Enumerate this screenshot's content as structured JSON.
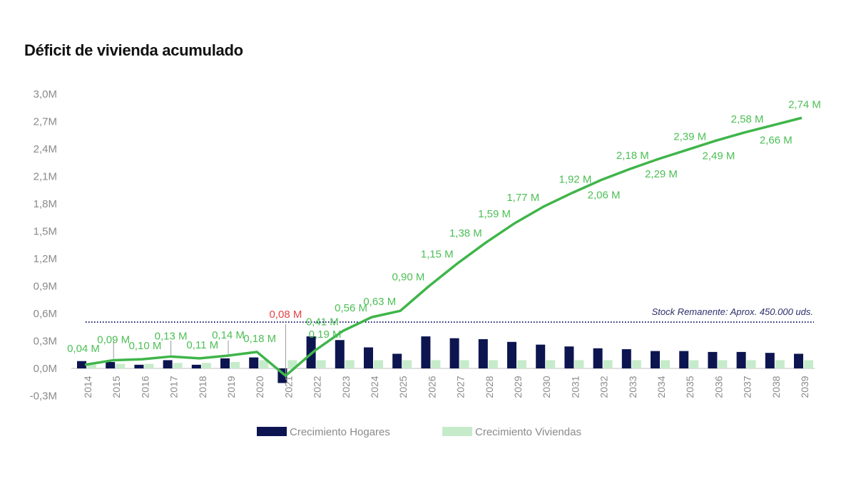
{
  "title": "Déficit de vivienda acumulado",
  "colors": {
    "hogares": "#0d1550",
    "viviendas": "#c6ebcb",
    "line": "#3fb54a",
    "label": "#4cbf55",
    "negative_label": "#e04545",
    "stock_line": "#1a1f6e",
    "axis_text": "#8a8a8a"
  },
  "chart_data": {
    "type": "bar+line",
    "categories": [
      "2014",
      "2015",
      "2016",
      "2017",
      "2018",
      "2019",
      "2020",
      "2021",
      "2022",
      "2023",
      "2024",
      "2025",
      "2026",
      "2027",
      "2028",
      "2029",
      "2030",
      "2031",
      "2032",
      "2033",
      "2034",
      "2035",
      "2036",
      "2037",
      "2038",
      "2039"
    ],
    "x_tick_labels": [
      "2014",
      "2015",
      "2016",
      "2017",
      "2018",
      "2019",
      "2020",
      "2021",
      "2022",
      "2023",
      "2024",
      "2025",
      "2026",
      "2027",
      "2028",
      "2029",
      "2030",
      "2031",
      "2032",
      "2033",
      "2034",
      "2035",
      "2036",
      "2037",
      "2038",
      "2039"
    ],
    "y_tick_labels": [
      "-0,3M",
      "0,0M",
      "0,3M",
      "0,6M",
      "0,9M",
      "1,2M",
      "1,5M",
      "1,8M",
      "2,1M",
      "2,4M",
      "2,7M",
      "3,0M"
    ],
    "ylim": [
      -0.3,
      3.0
    ],
    "series": [
      {
        "name": "Crecimiento Hogares",
        "type": "bar",
        "values": [
          0.08,
          0.07,
          0.04,
          0.09,
          0.04,
          0.11,
          0.12,
          -0.16,
          0.35,
          0.31,
          0.23,
          0.16,
          0.35,
          0.33,
          0.32,
          0.29,
          0.26,
          0.24,
          0.22,
          0.21,
          0.19,
          0.19,
          0.18,
          0.18,
          0.17,
          0.16
        ]
      },
      {
        "name": "Crecimiento Viviendas",
        "type": "bar",
        "values": [
          0.04,
          0.05,
          0.05,
          0.06,
          0.06,
          0.07,
          0.09,
          0.09,
          0.09,
          0.09,
          0.09,
          0.09,
          0.09,
          0.09,
          0.09,
          0.09,
          0.09,
          0.09,
          0.09,
          0.09,
          0.09,
          0.09,
          0.09,
          0.09,
          0.09,
          0.09
        ]
      },
      {
        "type": "line",
        "values": [
          0.04,
          0.09,
          0.1,
          0.13,
          0.11,
          0.14,
          0.18,
          -0.08,
          0.19,
          0.41,
          0.56,
          0.63,
          0.9,
          1.15,
          1.38,
          1.59,
          1.77,
          1.92,
          2.06,
          2.18,
          2.29,
          2.39,
          2.49,
          2.58,
          2.66,
          2.74
        ]
      }
    ],
    "data_labels": [
      {
        "index": 0,
        "text": "0,04 M",
        "pos": "above",
        "color": "green"
      },
      {
        "index": 1,
        "text": "0,09 M",
        "pos": "above-high",
        "color": "green"
      },
      {
        "index": 2,
        "text": "0,10 M",
        "pos": "above",
        "color": "green"
      },
      {
        "index": 3,
        "text": "0,13 M",
        "pos": "above-high",
        "color": "green"
      },
      {
        "index": 4,
        "text": "0,11 M",
        "pos": "above",
        "color": "green"
      },
      {
        "index": 5,
        "text": "0,14 M",
        "pos": "above-high",
        "color": "green"
      },
      {
        "index": 6,
        "text": "0,18 M",
        "pos": "above",
        "color": "green"
      },
      {
        "index": 7,
        "text": "0,08 M",
        "pos": "callout",
        "color": "red"
      },
      {
        "index": 8,
        "text": "0,19 M",
        "pos": "above",
        "color": "green"
      },
      {
        "index": 9,
        "text": "0,41 M",
        "pos": "left",
        "color": "green"
      },
      {
        "index": 10,
        "text": "0,56 M",
        "pos": "left",
        "color": "green"
      },
      {
        "index": 11,
        "text": "0,63 M",
        "pos": "left",
        "color": "green"
      },
      {
        "index": 12,
        "text": "0,90 M",
        "pos": "left",
        "color": "green"
      },
      {
        "index": 13,
        "text": "1,15 M",
        "pos": "left",
        "color": "green"
      },
      {
        "index": 14,
        "text": "1,38 M",
        "pos": "left",
        "color": "green"
      },
      {
        "index": 15,
        "text": "1,59 M",
        "pos": "left",
        "color": "green"
      },
      {
        "index": 16,
        "text": "1,77 M",
        "pos": "left",
        "color": "green"
      },
      {
        "index": 17,
        "text": "1,92 M",
        "pos": "above",
        "color": "green"
      },
      {
        "index": 18,
        "text": "2,06 M",
        "pos": "below",
        "color": "green"
      },
      {
        "index": 19,
        "text": "2,18 M",
        "pos": "above",
        "color": "green"
      },
      {
        "index": 20,
        "text": "2,29 M",
        "pos": "below",
        "color": "green"
      },
      {
        "index": 21,
        "text": "2,39 M",
        "pos": "above",
        "color": "green"
      },
      {
        "index": 22,
        "text": "2,49 M",
        "pos": "below",
        "color": "green"
      },
      {
        "index": 23,
        "text": "2,58 M",
        "pos": "above",
        "color": "green"
      },
      {
        "index": 24,
        "text": "2,66 M",
        "pos": "below",
        "color": "green"
      },
      {
        "index": 25,
        "text": "2,74 M",
        "pos": "above",
        "color": "green"
      }
    ],
    "reference_line": {
      "value": 0.52,
      "style": "dotted",
      "label": "Stock Remanente: Aprox. 450.000 uds."
    },
    "legend": {
      "placement": "bottom",
      "items": [
        "Crecimiento Hogares",
        "Crecimiento Viviendas"
      ]
    },
    "grid": false
  }
}
